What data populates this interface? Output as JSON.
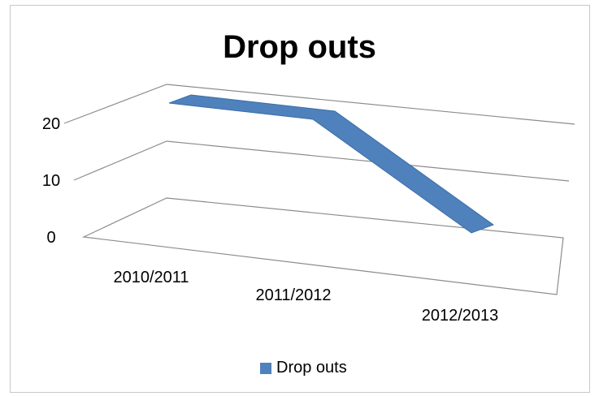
{
  "chart_data": {
    "type": "line",
    "style": "3d-ribbon",
    "title": "Drop outs",
    "categories": [
      "2010/2011",
      "2011/2012",
      "2012/2013"
    ],
    "series": [
      {
        "name": "Drop outs",
        "values": [
          17,
          17,
          1
        ],
        "color": "#4f81bd"
      }
    ],
    "y_ticks": [
      "0",
      "10",
      "20"
    ],
    "ylim": [
      0,
      20
    ],
    "grid": true,
    "legend": "bottom"
  }
}
